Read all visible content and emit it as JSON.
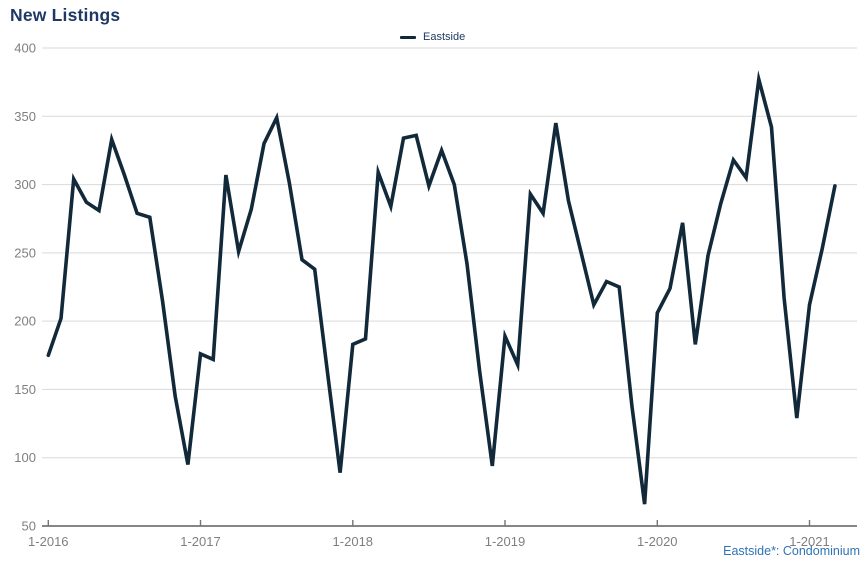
{
  "title": "New Listings",
  "legend": {
    "items": [
      {
        "label": "Eastside"
      }
    ]
  },
  "footnote": "Eastside*: Condominium",
  "colors": {
    "title_text": "#1F3864",
    "legend_text": "#1F3864",
    "footnote_text": "#2E74B5",
    "axis_label": "#7F7F7F",
    "gridline": "#D9D9D9",
    "axis_line": "#757575",
    "series_line": "#12293A",
    "background": "#FFFFFF"
  },
  "chart_data": {
    "type": "line",
    "title": "New Listings",
    "xlabel": "",
    "ylabel": "",
    "grid": true,
    "legend_position": "top-center",
    "ylim": [
      50,
      400
    ],
    "y_ticks": [
      400,
      350,
      300,
      250,
      200,
      150,
      100,
      50
    ],
    "x_tick_labels": [
      "1-2016",
      "1-2017",
      "1-2018",
      "1-2019",
      "1-2020",
      "1-2021"
    ],
    "x": [
      "1-2016",
      "2-2016",
      "3-2016",
      "4-2016",
      "5-2016",
      "6-2016",
      "7-2016",
      "8-2016",
      "9-2016",
      "10-2016",
      "11-2016",
      "12-2016",
      "1-2017",
      "2-2017",
      "3-2017",
      "4-2017",
      "5-2017",
      "6-2017",
      "7-2017",
      "8-2017",
      "9-2017",
      "10-2017",
      "11-2017",
      "12-2017",
      "1-2018",
      "2-2018",
      "3-2018",
      "4-2018",
      "5-2018",
      "6-2018",
      "7-2018",
      "8-2018",
      "9-2018",
      "10-2018",
      "11-2018",
      "12-2018",
      "1-2019",
      "2-2019",
      "3-2019",
      "4-2019",
      "5-2019",
      "6-2019",
      "7-2019",
      "8-2019",
      "9-2019",
      "10-2019",
      "11-2019",
      "12-2019",
      "1-2020",
      "2-2020",
      "3-2020",
      "4-2020",
      "5-2020",
      "6-2020",
      "7-2020",
      "8-2020",
      "9-2020",
      "10-2020",
      "11-2020",
      "12-2020",
      "1-2021",
      "2-2021",
      "3-2021"
    ],
    "series": [
      {
        "name": "Eastside",
        "color": "#12293A",
        "values": [
          175,
          202,
          304,
          287,
          281,
          333,
          307,
          279,
          276,
          215,
          145,
          95,
          176,
          172,
          307,
          251,
          282,
          330,
          349,
          301,
          245,
          238,
          163,
          89,
          183,
          187,
          309,
          284,
          334,
          336,
          299,
          325,
          300,
          242,
          163,
          94,
          189,
          168,
          293,
          279,
          345,
          288,
          250,
          212,
          229,
          225,
          138,
          66,
          206,
          224,
          272,
          183,
          248,
          286,
          318,
          305,
          377,
          342,
          217,
          129,
          212,
          253,
          299
        ]
      }
    ],
    "footnote": "Eastside*: Condominium"
  }
}
